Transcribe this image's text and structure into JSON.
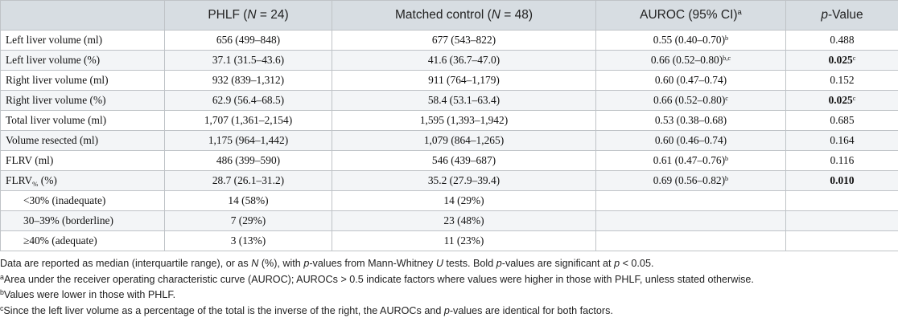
{
  "table": {
    "headers": [
      {
        "text": "",
        "italic_n": null
      },
      {
        "pre": "PHLF (",
        "n_label": "N",
        "post": " = 24)"
      },
      {
        "pre": "Matched control (",
        "n_label": "N",
        "post": " = 48)"
      },
      {
        "pre": "AUROC (95% CI)",
        "sup": "a"
      },
      {
        "pre": "p",
        "post": "-Value"
      }
    ],
    "rows": [
      {
        "label": "Left liver volume (ml)",
        "phlf": "656 (499–848)",
        "control": "677 (543–822)",
        "auroc": "0.55 (0.40–0.70)",
        "auroc_sup": "b",
        "p": "0.488",
        "p_bold": false,
        "p_sup": ""
      },
      {
        "label": "Left liver volume (%)",
        "phlf": "37.1 (31.5–43.6)",
        "control": "41.6 (36.7–47.0)",
        "auroc": "0.66 (0.52–0.80)",
        "auroc_sup": "b,c",
        "p": "0.025",
        "p_bold": true,
        "p_sup": "c"
      },
      {
        "label": "Right liver volume (ml)",
        "phlf": "932 (839–1,312)",
        "control": "911 (764–1,179)",
        "auroc": "0.60 (0.47–0.74)",
        "auroc_sup": "",
        "p": "0.152",
        "p_bold": false,
        "p_sup": ""
      },
      {
        "label": "Right liver volume (%)",
        "phlf": "62.9 (56.4–68.5)",
        "control": "58.4 (53.1–63.4)",
        "auroc": "0.66 (0.52–0.80)",
        "auroc_sup": "c",
        "p": "0.025",
        "p_bold": true,
        "p_sup": "c"
      },
      {
        "label": "Total liver volume (ml)",
        "phlf": "1,707 (1,361–2,154)",
        "control": "1,595 (1,393–1,942)",
        "auroc": "0.53 (0.38–0.68)",
        "auroc_sup": "",
        "p": "0.685",
        "p_bold": false,
        "p_sup": ""
      },
      {
        "label": "Volume resected (ml)",
        "phlf": "1,175 (964–1,442)",
        "control": "1,079 (864–1,265)",
        "auroc": "0.60 (0.46–0.74)",
        "auroc_sup": "",
        "p": "0.164",
        "p_bold": false,
        "p_sup": ""
      },
      {
        "label": "FLRV (ml)",
        "phlf": "486 (399–590)",
        "control": "546 (439–687)",
        "auroc": "0.61 (0.47–0.76)",
        "auroc_sup": "b",
        "p": "0.116",
        "p_bold": false,
        "p_sup": ""
      },
      {
        "label": "FLRV",
        "label_sub": "%",
        "label_post": " (%)",
        "phlf": "28.7 (26.1–31.2)",
        "control": "35.2 (27.9–39.4)",
        "auroc": "0.69 (0.56–0.82)",
        "auroc_sup": "b",
        "p": "0.010",
        "p_bold": true,
        "p_sup": ""
      },
      {
        "label": "<30% (inadequate)",
        "indent": true,
        "phlf": "14 (58%)",
        "control": "14 (29%)",
        "auroc": "",
        "auroc_sup": "",
        "p": "",
        "p_bold": false,
        "p_sup": ""
      },
      {
        "label": "30–39% (borderline)",
        "indent": true,
        "phlf": "7 (29%)",
        "control": "23 (48%)",
        "auroc": "",
        "auroc_sup": "",
        "p": "",
        "p_bold": false,
        "p_sup": ""
      },
      {
        "label": "≥40% (adequate)",
        "indent": true,
        "phlf": "3 (13%)",
        "control": "11 (23%)",
        "auroc": "",
        "auroc_sup": "",
        "p": "",
        "p_bold": false,
        "p_sup": ""
      }
    ]
  },
  "notes": {
    "line1": {
      "a": "Data are reported as median (interquartile range), or as ",
      "b": "N",
      "c": " (%), with ",
      "d": "p",
      "e": "-values from Mann-Whitney ",
      "f": "U",
      "g": " tests. Bold ",
      "h": "p",
      "i": "-values are significant at ",
      "j": "p",
      "k": " < 0.05."
    },
    "line2": {
      "sup": "a",
      "text": "Area under the receiver operating characteristic curve (AUROC); AUROCs > 0.5 indicate factors where values were higher in those with PHLF, unless stated otherwise."
    },
    "line3": {
      "sup": "b",
      "text": "Values were lower in those with PHLF."
    },
    "line4": {
      "sup": "c",
      "a": "Since the left liver volume as a percentage of the total is the inverse of the right, the AUROCs and ",
      "b": "p",
      "c": "-values are identical for both factors."
    }
  }
}
